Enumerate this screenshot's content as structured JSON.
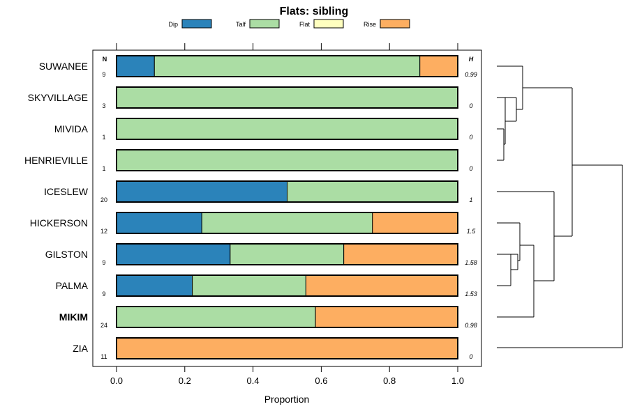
{
  "chart_data": {
    "type": "bar",
    "stacked": true,
    "orientation": "horizontal",
    "title": "Flats: sibling",
    "xlabel": "Proportion",
    "xlim": [
      0,
      1
    ],
    "xticks": [
      "0.0",
      "0.2",
      "0.4",
      "0.6",
      "0.8",
      "1.0"
    ],
    "xtick_values": [
      0,
      0.2,
      0.4,
      0.6,
      0.8,
      1.0
    ],
    "legend_position": "top",
    "legend": [
      {
        "name": "Dip",
        "color": "#2b83ba"
      },
      {
        "name": "Talf",
        "color": "#abdda4"
      },
      {
        "name": "Flat",
        "color": "#ffffbf"
      },
      {
        "name": "Rise",
        "color": "#fdae61"
      }
    ],
    "n_header": "N",
    "h_header": "H",
    "categories": [
      "SUWANEE",
      "SKYVILLAGE",
      "MIVIDA",
      "HENRIEVILLE",
      "ICESLEW",
      "HICKERSON",
      "GILSTON",
      "PALMA",
      "MIKIM",
      "ZIA"
    ],
    "bold_category": "MIKIM",
    "n": [
      "9",
      "3",
      "1",
      "1",
      "20",
      "12",
      "9",
      "9",
      "24",
      "11"
    ],
    "h": [
      "0.99",
      "0",
      "0",
      "0",
      "1",
      "1.5",
      "1.58",
      "1.53",
      "0.98",
      "0"
    ],
    "series": [
      {
        "name": "Dip",
        "values": [
          0.111,
          0,
          0,
          0,
          0.5,
          0.25,
          0.333,
          0.222,
          0,
          0
        ]
      },
      {
        "name": "Talf",
        "values": [
          0.778,
          1,
          1,
          1,
          0.5,
          0.5,
          0.333,
          0.333,
          0.583,
          0
        ]
      },
      {
        "name": "Flat",
        "values": [
          0,
          0,
          0,
          0,
          0,
          0,
          0,
          0,
          0,
          0
        ]
      },
      {
        "name": "Rise",
        "values": [
          0.111,
          0,
          0,
          0,
          0,
          0.25,
          0.333,
          0.444,
          0.417,
          1
        ]
      }
    ],
    "dendrogram": "hierarchical clustering of the ten rows (right side)"
  }
}
